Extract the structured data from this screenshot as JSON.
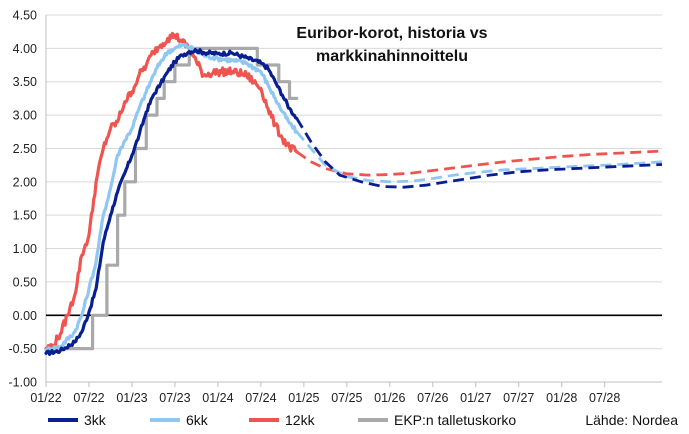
{
  "chart_data": {
    "type": "line",
    "title_lines": [
      "Euribor-korot, historia vs",
      "markkinahinnoittelu"
    ],
    "source": "Lähde: Nordea",
    "xlabel": "",
    "ylabel": "",
    "ylim": [
      -1.0,
      4.5
    ],
    "yticks": [
      "4.50",
      "4.00",
      "3.50",
      "3.00",
      "2.50",
      "2.00",
      "1.50",
      "1.00",
      "0.50",
      "0.00",
      "-0.50",
      "-1.00"
    ],
    "xlim_months": [
      0,
      86
    ],
    "xticks": [
      "01/22",
      "07/22",
      "01/23",
      "07/23",
      "01/24",
      "07/24",
      "01/25",
      "07/25",
      "01/26",
      "07/26",
      "01/27",
      "07/27",
      "01/28",
      "07/28"
    ],
    "grid": "horizontal",
    "zero_line": true,
    "legend_position": "bottom",
    "series": [
      {
        "name": "3kk",
        "color": "#0a1f8f",
        "history": [
          [
            0,
            -0.57
          ],
          [
            2,
            -0.53
          ],
          [
            4,
            -0.4
          ],
          [
            5,
            -0.25
          ],
          [
            6,
            0.05
          ],
          [
            7,
            0.4
          ],
          [
            8,
            1.1
          ],
          [
            9,
            1.5
          ],
          [
            10,
            1.85
          ],
          [
            11,
            2.13
          ],
          [
            12,
            2.4
          ],
          [
            13,
            2.7
          ],
          [
            14,
            3.05
          ],
          [
            15,
            3.3
          ],
          [
            16,
            3.47
          ],
          [
            17,
            3.65
          ],
          [
            18,
            3.8
          ],
          [
            19,
            3.9
          ],
          [
            20,
            3.95
          ],
          [
            21,
            3.97
          ],
          [
            22,
            3.94
          ],
          [
            24,
            3.92
          ],
          [
            26,
            3.93
          ],
          [
            28,
            3.86
          ],
          [
            30,
            3.78
          ],
          [
            31,
            3.7
          ],
          [
            32,
            3.5
          ],
          [
            33,
            3.3
          ],
          [
            34,
            3.1
          ],
          [
            35,
            2.95
          ]
        ],
        "forecast": [
          [
            35,
            2.95
          ],
          [
            37,
            2.6
          ],
          [
            39,
            2.3
          ],
          [
            41,
            2.1
          ],
          [
            44,
            2.0
          ],
          [
            47,
            1.93
          ],
          [
            50,
            1.92
          ],
          [
            53,
            1.95
          ],
          [
            56,
            2.0
          ],
          [
            59,
            2.05
          ],
          [
            62,
            2.1
          ],
          [
            66,
            2.15
          ],
          [
            70,
            2.18
          ],
          [
            74,
            2.2
          ],
          [
            78,
            2.22
          ],
          [
            82,
            2.24
          ],
          [
            86,
            2.26
          ]
        ]
      },
      {
        "name": "6kk",
        "color": "#8fc7f2",
        "history": [
          [
            0,
            -0.52
          ],
          [
            2,
            -0.47
          ],
          [
            4,
            -0.25
          ],
          [
            5,
            0.0
          ],
          [
            6,
            0.4
          ],
          [
            7,
            0.8
          ],
          [
            8,
            1.5
          ],
          [
            9,
            1.9
          ],
          [
            10,
            2.4
          ],
          [
            11,
            2.62
          ],
          [
            12,
            2.8
          ],
          [
            13,
            3.1
          ],
          [
            14,
            3.35
          ],
          [
            15,
            3.6
          ],
          [
            16,
            3.8
          ],
          [
            17,
            3.95
          ],
          [
            18,
            4.0
          ],
          [
            19,
            4.05
          ],
          [
            20,
            4.02
          ],
          [
            21,
            3.95
          ],
          [
            22,
            3.9
          ],
          [
            24,
            3.85
          ],
          [
            26,
            3.82
          ],
          [
            28,
            3.78
          ],
          [
            30,
            3.65
          ],
          [
            31,
            3.45
          ],
          [
            32,
            3.25
          ],
          [
            33,
            3.05
          ],
          [
            34,
            2.88
          ],
          [
            35,
            2.75
          ]
        ],
        "forecast": [
          [
            35,
            2.75
          ],
          [
            37,
            2.5
          ],
          [
            39,
            2.25
          ],
          [
            42,
            2.08
          ],
          [
            45,
            2.02
          ],
          [
            48,
            2.0
          ],
          [
            51,
            2.01
          ],
          [
            54,
            2.05
          ],
          [
            57,
            2.1
          ],
          [
            60,
            2.14
          ],
          [
            64,
            2.18
          ],
          [
            68,
            2.2
          ],
          [
            72,
            2.22
          ],
          [
            76,
            2.24
          ],
          [
            80,
            2.26
          ],
          [
            86,
            2.3
          ]
        ]
      },
      {
        "name": "12kk",
        "color": "#ef5550",
        "history": [
          [
            0,
            -0.5
          ],
          [
            1,
            -0.45
          ],
          [
            2,
            -0.28
          ],
          [
            3,
            0.0
          ],
          [
            4,
            0.3
          ],
          [
            5,
            0.9
          ],
          [
            6,
            1.2
          ],
          [
            7,
            2.0
          ],
          [
            8,
            2.5
          ],
          [
            9,
            2.8
          ],
          [
            10,
            2.9
          ],
          [
            11,
            3.2
          ],
          [
            12,
            3.35
          ],
          [
            13,
            3.6
          ],
          [
            14,
            3.75
          ],
          [
            15,
            3.95
          ],
          [
            16,
            4.05
          ],
          [
            17,
            4.15
          ],
          [
            18,
            4.2
          ],
          [
            19,
            4.1
          ],
          [
            20,
            4.0
          ],
          [
            21,
            3.8
          ],
          [
            22,
            3.6
          ],
          [
            24,
            3.65
          ],
          [
            26,
            3.65
          ],
          [
            28,
            3.6
          ],
          [
            30,
            3.4
          ],
          [
            31,
            3.1
          ],
          [
            32,
            2.85
          ],
          [
            33,
            2.65
          ],
          [
            34,
            2.52
          ],
          [
            35,
            2.45
          ]
        ],
        "forecast": [
          [
            35,
            2.45
          ],
          [
            37,
            2.3
          ],
          [
            39,
            2.2
          ],
          [
            42,
            2.12
          ],
          [
            45,
            2.1
          ],
          [
            48,
            2.11
          ],
          [
            51,
            2.13
          ],
          [
            54,
            2.17
          ],
          [
            57,
            2.21
          ],
          [
            60,
            2.25
          ],
          [
            64,
            2.3
          ],
          [
            68,
            2.34
          ],
          [
            72,
            2.38
          ],
          [
            76,
            2.41
          ],
          [
            80,
            2.43
          ],
          [
            86,
            2.46
          ]
        ]
      },
      {
        "name": "EKP:n talletuskorko",
        "color": "#a9a9a9",
        "history": [
          [
            0,
            -0.5
          ],
          [
            6.5,
            -0.5
          ],
          [
            6.5,
            0.0
          ],
          [
            8.5,
            0.0
          ],
          [
            8.5,
            0.75
          ],
          [
            10,
            0.75
          ],
          [
            10,
            1.5
          ],
          [
            11,
            1.5
          ],
          [
            11,
            2.0
          ],
          [
            12.5,
            2.0
          ],
          [
            12.5,
            2.5
          ],
          [
            14,
            2.5
          ],
          [
            14,
            3.0
          ],
          [
            15.5,
            3.0
          ],
          [
            15.5,
            3.25
          ],
          [
            16.5,
            3.25
          ],
          [
            16.5,
            3.5
          ],
          [
            18,
            3.5
          ],
          [
            18,
            3.75
          ],
          [
            20,
            3.75
          ],
          [
            20,
            4.0
          ],
          [
            29.5,
            4.0
          ],
          [
            29.5,
            3.75
          ],
          [
            32.5,
            3.75
          ],
          [
            32.5,
            3.5
          ],
          [
            34,
            3.5
          ],
          [
            34,
            3.25
          ],
          [
            35,
            3.25
          ]
        ],
        "forecast": []
      }
    ]
  }
}
